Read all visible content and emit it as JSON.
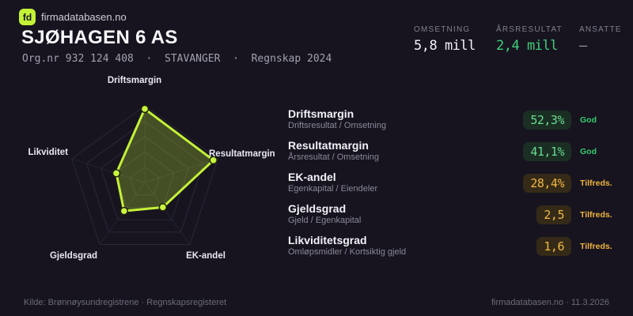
{
  "brand": {
    "logo_text": "fd",
    "site": "firmadatabasen.no"
  },
  "header": {
    "company": "SJØHAGEN 6 AS",
    "org_line": "Org.nr 932 124 408  ·  STAVANGER  ·  Regnskap 2024",
    "stats": [
      {
        "label": "OMSETNING",
        "value": "5,8 mill",
        "color": "#f2f1f6"
      },
      {
        "label": "ÅRSRESULTAT",
        "value": "2,4 mill",
        "color": "#3ecf78"
      },
      {
        "label": "ANSATTE",
        "value": "–",
        "color": "#9a97a5"
      }
    ]
  },
  "chart_data": {
    "type": "radar",
    "axes": [
      "Driftsmargin",
      "Resultatmargin",
      "EK-andel",
      "Gjeldsgrad",
      "Likviditet"
    ],
    "scores": [
      96,
      94,
      40,
      46,
      39
    ],
    "max": 100,
    "rings": 5,
    "grid": "pentagon",
    "legend": "none",
    "stroke_color": "#c3f136",
    "fill_color": "rgba(195,241,54,0.27)",
    "dot_color": "#c9f63e"
  },
  "metrics": [
    {
      "name": "Driftsmargin",
      "formula": "Driftsresultat / Omsetning",
      "value": "52,3%",
      "status": "God",
      "tone": "good"
    },
    {
      "name": "Resultatmargin",
      "formula": "Årsresultat / Omsetning",
      "value": "41,1%",
      "status": "God",
      "tone": "good"
    },
    {
      "name": "EK-andel",
      "formula": "Egenkapital / Eiendeler",
      "value": "28,4%",
      "status": "Tilfreds.",
      "tone": "ok"
    },
    {
      "name": "Gjeldsgrad",
      "formula": "Gjeld / Egenkapital",
      "value": "2,5",
      "status": "Tilfreds.",
      "tone": "ok"
    },
    {
      "name": "Likviditetsgrad",
      "formula": "Omløpsmidler / Kortsiktig gjeld",
      "value": "1,6",
      "status": "Tilfreds.",
      "tone": "ok"
    }
  ],
  "footer": {
    "source": "Kilde: Brønnøysundregistrene · Regnskapsregisteret",
    "site_date": "firmadatabasen.no · 11.3.2026"
  },
  "colors": {
    "background": "#171420",
    "accent": "#c3f136",
    "good": "#35cb6e",
    "ok": "#f0b43c"
  }
}
